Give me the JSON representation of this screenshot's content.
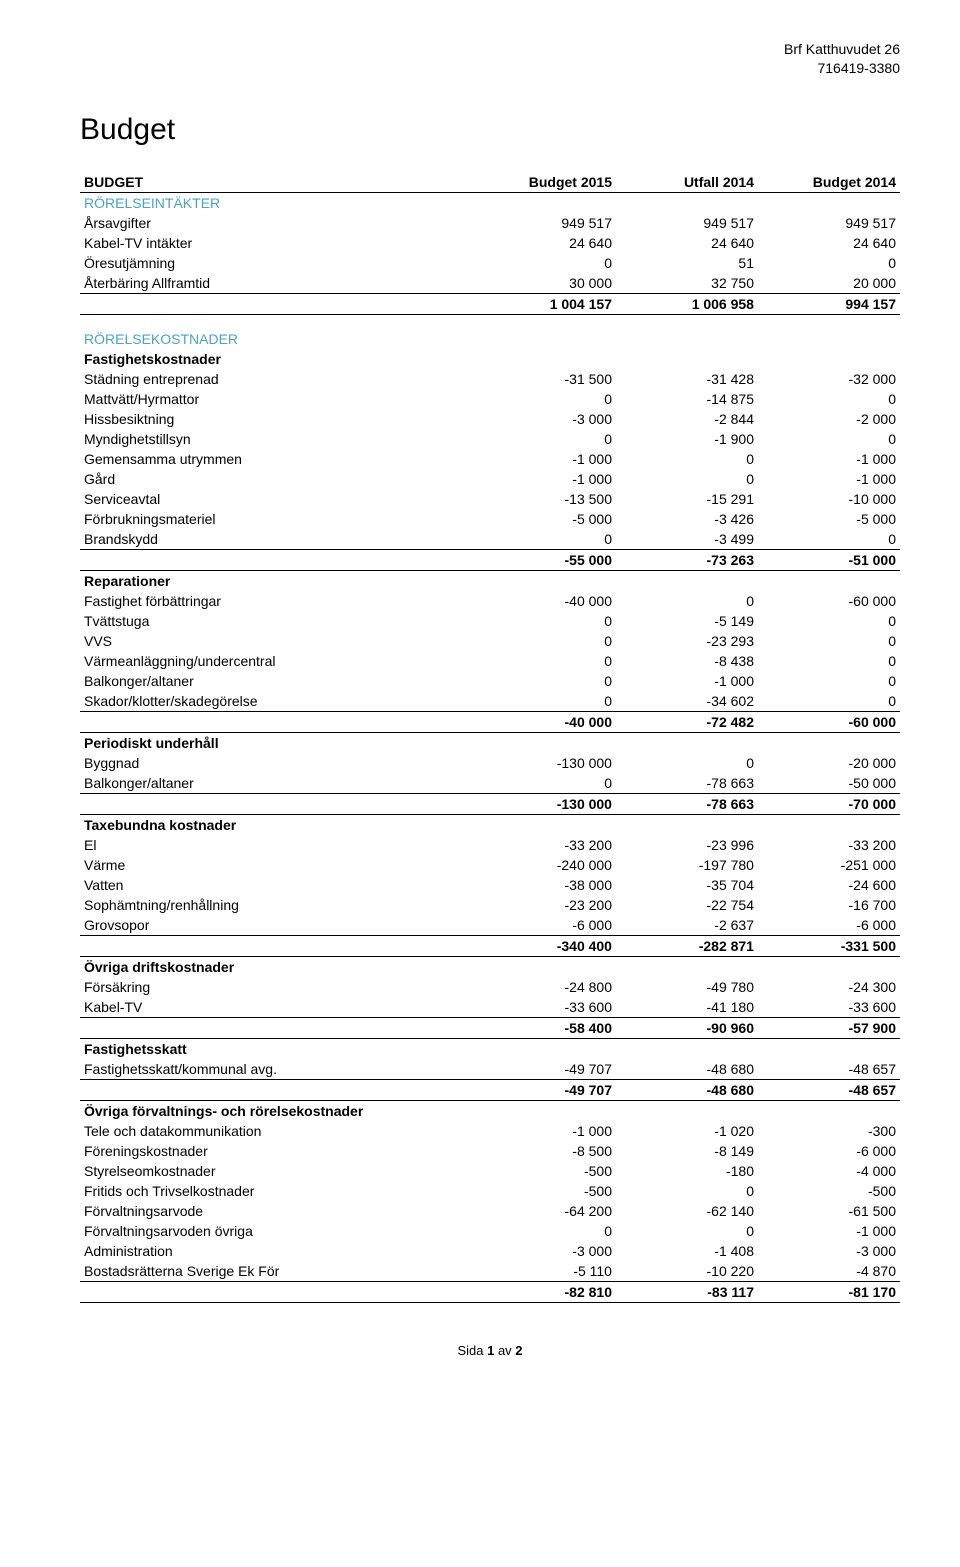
{
  "header": {
    "org_name": "Brf Katthuvudet 26",
    "org_nr": "716419-3380"
  },
  "title": "Budget",
  "columns": {
    "c0": "BUDGET",
    "c1": "Budget 2015",
    "c2": "Utfall 2014",
    "c3": "Budget 2014"
  },
  "footer": {
    "prefix": "Sida ",
    "page": "1",
    "mid": " av ",
    "total": "2"
  },
  "rows": [
    {
      "type": "blue",
      "label": "RÖRELSEINTÄKTER"
    },
    {
      "type": "data",
      "label": "Årsavgifter",
      "v": [
        "949 517",
        "949 517",
        "949 517"
      ]
    },
    {
      "type": "data",
      "label": "Kabel-TV intäkter",
      "v": [
        "24 640",
        "24 640",
        "24 640"
      ]
    },
    {
      "type": "data",
      "label": "Öresutjämning",
      "v": [
        "0",
        "51",
        "0"
      ]
    },
    {
      "type": "data",
      "label": "Återbäring Allframtid",
      "v": [
        "30 000",
        "32 750",
        "20 000"
      ]
    },
    {
      "type": "sum",
      "label": "",
      "v": [
        "1 004 157",
        "1 006 958",
        "994 157"
      ]
    },
    {
      "type": "gap"
    },
    {
      "type": "blue",
      "label": "RÖRELSEKOSTNADER"
    },
    {
      "type": "bold",
      "label": "Fastighetskostnader"
    },
    {
      "type": "data",
      "label": "Städning entreprenad",
      "v": [
        "-31 500",
        "-31 428",
        "-32 000"
      ]
    },
    {
      "type": "data",
      "label": "Mattvätt/Hyrmattor",
      "v": [
        "0",
        "-14 875",
        "0"
      ]
    },
    {
      "type": "data",
      "label": "Hissbesiktning",
      "v": [
        "-3 000",
        "-2 844",
        "-2 000"
      ]
    },
    {
      "type": "data",
      "label": "Myndighetstillsyn",
      "v": [
        "0",
        "-1 900",
        "0"
      ]
    },
    {
      "type": "data",
      "label": "Gemensamma utrymmen",
      "v": [
        "-1 000",
        "0",
        "-1 000"
      ]
    },
    {
      "type": "data",
      "label": "Gård",
      "v": [
        "-1 000",
        "0",
        "-1 000"
      ]
    },
    {
      "type": "data",
      "label": "Serviceavtal",
      "v": [
        "-13 500",
        "-15 291",
        "-10 000"
      ]
    },
    {
      "type": "data",
      "label": "Förbrukningsmateriel",
      "v": [
        "-5 000",
        "-3 426",
        "-5 000"
      ]
    },
    {
      "type": "data",
      "label": "Brandskydd",
      "v": [
        "0",
        "-3 499",
        "0"
      ]
    },
    {
      "type": "sum",
      "label": "",
      "v": [
        "-55 000",
        "-73 263",
        "-51 000"
      ]
    },
    {
      "type": "bold",
      "label": "Reparationer"
    },
    {
      "type": "data",
      "label": "Fastighet förbättringar",
      "v": [
        "-40 000",
        "0",
        "-60 000"
      ]
    },
    {
      "type": "data",
      "label": "Tvättstuga",
      "v": [
        "0",
        "-5 149",
        "0"
      ]
    },
    {
      "type": "data",
      "label": "VVS",
      "v": [
        "0",
        "-23 293",
        "0"
      ]
    },
    {
      "type": "data",
      "label": "Värmeanläggning/undercentral",
      "v": [
        "0",
        "-8 438",
        "0"
      ]
    },
    {
      "type": "data",
      "label": "Balkonger/altaner",
      "v": [
        "0",
        "-1 000",
        "0"
      ]
    },
    {
      "type": "data",
      "label": "Skador/klotter/skadegörelse",
      "v": [
        "0",
        "-34 602",
        "0"
      ]
    },
    {
      "type": "sum",
      "label": "",
      "v": [
        "-40 000",
        "-72 482",
        "-60 000"
      ]
    },
    {
      "type": "bold",
      "label": "Periodiskt underhåll"
    },
    {
      "type": "data",
      "label": "Byggnad",
      "v": [
        "-130 000",
        "0",
        "-20 000"
      ]
    },
    {
      "type": "data",
      "label": "Balkonger/altaner",
      "v": [
        "0",
        "-78 663",
        "-50 000"
      ]
    },
    {
      "type": "sum",
      "label": "",
      "v": [
        "-130 000",
        "-78 663",
        "-70 000"
      ]
    },
    {
      "type": "bold",
      "label": "Taxebundna kostnader"
    },
    {
      "type": "data",
      "label": "El",
      "v": [
        "-33 200",
        "-23 996",
        "-33 200"
      ]
    },
    {
      "type": "data",
      "label": "Värme",
      "v": [
        "-240 000",
        "-197 780",
        "-251 000"
      ]
    },
    {
      "type": "data",
      "label": "Vatten",
      "v": [
        "-38 000",
        "-35 704",
        "-24 600"
      ]
    },
    {
      "type": "data",
      "label": "Sophämtning/renhållning",
      "v": [
        "-23 200",
        "-22 754",
        "-16 700"
      ]
    },
    {
      "type": "data",
      "label": "Grovsopor",
      "v": [
        "-6 000",
        "-2 637",
        "-6 000"
      ]
    },
    {
      "type": "sum",
      "label": "",
      "v": [
        "-340 400",
        "-282 871",
        "-331 500"
      ]
    },
    {
      "type": "bold",
      "label": "Övriga driftskostnader"
    },
    {
      "type": "data",
      "label": "Försäkring",
      "v": [
        "-24 800",
        "-49 780",
        "-24 300"
      ]
    },
    {
      "type": "data",
      "label": "Kabel-TV",
      "v": [
        "-33 600",
        "-41 180",
        "-33 600"
      ]
    },
    {
      "type": "sum",
      "label": "",
      "v": [
        "-58 400",
        "-90 960",
        "-57 900"
      ]
    },
    {
      "type": "bold",
      "label": "Fastighetsskatt"
    },
    {
      "type": "data",
      "label": "Fastighetsskatt/kommunal avg.",
      "v": [
        "-49 707",
        "-48 680",
        "-48 657"
      ]
    },
    {
      "type": "sum",
      "label": "",
      "v": [
        "-49 707",
        "-48 680",
        "-48 657"
      ]
    },
    {
      "type": "bold",
      "label": "Övriga förvaltnings- och rörelsekostnader"
    },
    {
      "type": "data",
      "label": "Tele och datakommunikation",
      "v": [
        "-1 000",
        "-1 020",
        "-300"
      ]
    },
    {
      "type": "data",
      "label": "Föreningskostnader",
      "v": [
        "-8 500",
        "-8 149",
        "-6 000"
      ]
    },
    {
      "type": "data",
      "label": "Styrelseomkostnader",
      "v": [
        "-500",
        "-180",
        "-4 000"
      ]
    },
    {
      "type": "data",
      "label": "Fritids och Trivselkostnader",
      "v": [
        "-500",
        "0",
        "-500"
      ]
    },
    {
      "type": "data",
      "label": "Förvaltningsarvode",
      "v": [
        "-64 200",
        "-62 140",
        "-61 500"
      ]
    },
    {
      "type": "data",
      "label": "Förvaltningsarvoden övriga",
      "v": [
        "0",
        "0",
        "-1 000"
      ]
    },
    {
      "type": "data",
      "label": "Administration",
      "v": [
        "-3 000",
        "-1 408",
        "-3 000"
      ]
    },
    {
      "type": "data",
      "label": "Bostadsrätterna Sverige Ek För",
      "v": [
        "-5 110",
        "-10 220",
        "-4 870"
      ]
    },
    {
      "type": "sum",
      "label": "",
      "v": [
        "-82 810",
        "-83 117",
        "-81 170"
      ]
    }
  ]
}
